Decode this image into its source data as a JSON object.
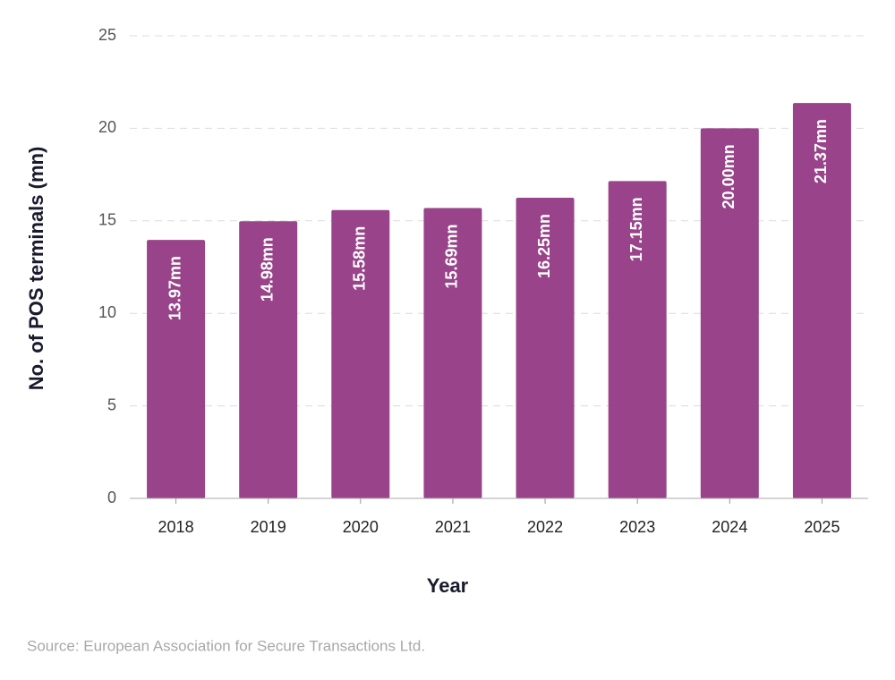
{
  "chart_data": {
    "type": "bar",
    "x_label": "Year",
    "y_label": "No. of POS terminals (mn)",
    "source": "Source: European Association for Secure Transactions Ltd.",
    "categories": [
      "2018",
      "2019",
      "2020",
      "2021",
      "2022",
      "2023",
      "2024",
      "2025"
    ],
    "values": [
      13.97,
      14.98,
      15.58,
      15.69,
      16.25,
      17.15,
      20.0,
      21.37
    ],
    "value_labels": [
      "13.97mn",
      "14.98mn",
      "15.58mn",
      "15.69mn",
      "16.25mn",
      "17.15mn",
      "20.00mn",
      "21.37mn"
    ],
    "color": "#99448a",
    "ylim": [
      0,
      25
    ],
    "yticks": [
      0,
      5,
      10,
      15,
      20,
      25
    ],
    "grid": true
  }
}
